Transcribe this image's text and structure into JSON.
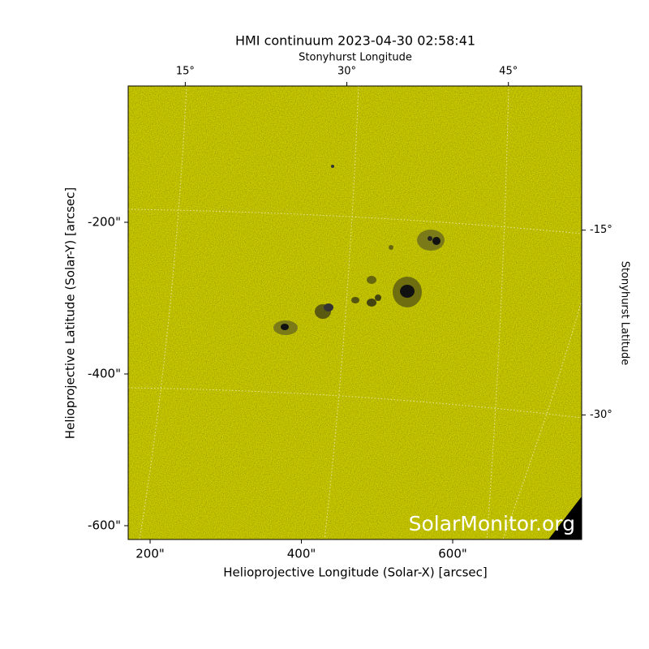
{
  "chart_data": {
    "type": "image",
    "title": "HMI continuum 2023-04-30 02:58:41",
    "xlabel": "Helioprojective Longitude (Solar-X) [arcsec]",
    "ylabel": "Helioprojective Latitude (Solar-Y) [arcsec]",
    "x2label": "Stonyhurst Longitude",
    "y2label": "Stonyhurst Latitude",
    "watermark": "SolarMonitor.org",
    "color": "#cccc00",
    "xlim": [
      171,
      770.5
    ],
    "ylim": [
      -618.2,
      -20.3
    ],
    "xticks": [
      {
        "value": 200,
        "label": "200\""
      },
      {
        "value": 400,
        "label": "400\""
      },
      {
        "value": 600,
        "label": "600\""
      }
    ],
    "yticks": [
      {
        "value": -200,
        "label": "-200\""
      },
      {
        "value": -400,
        "label": "-400\""
      },
      {
        "value": -600,
        "label": "-600\""
      }
    ],
    "x2lim": [
      9.7,
      51.8
    ],
    "x2ticks": [
      {
        "value": 15,
        "label": "15°"
      },
      {
        "value": 30,
        "label": "30°"
      },
      {
        "value": 45,
        "label": "45°"
      }
    ],
    "y2lim": [
      -40.1,
      -3.3
    ],
    "y2ticks": [
      {
        "value": -15,
        "label": "-15°"
      },
      {
        "value": -30,
        "label": "-30°"
      }
    ]
  }
}
